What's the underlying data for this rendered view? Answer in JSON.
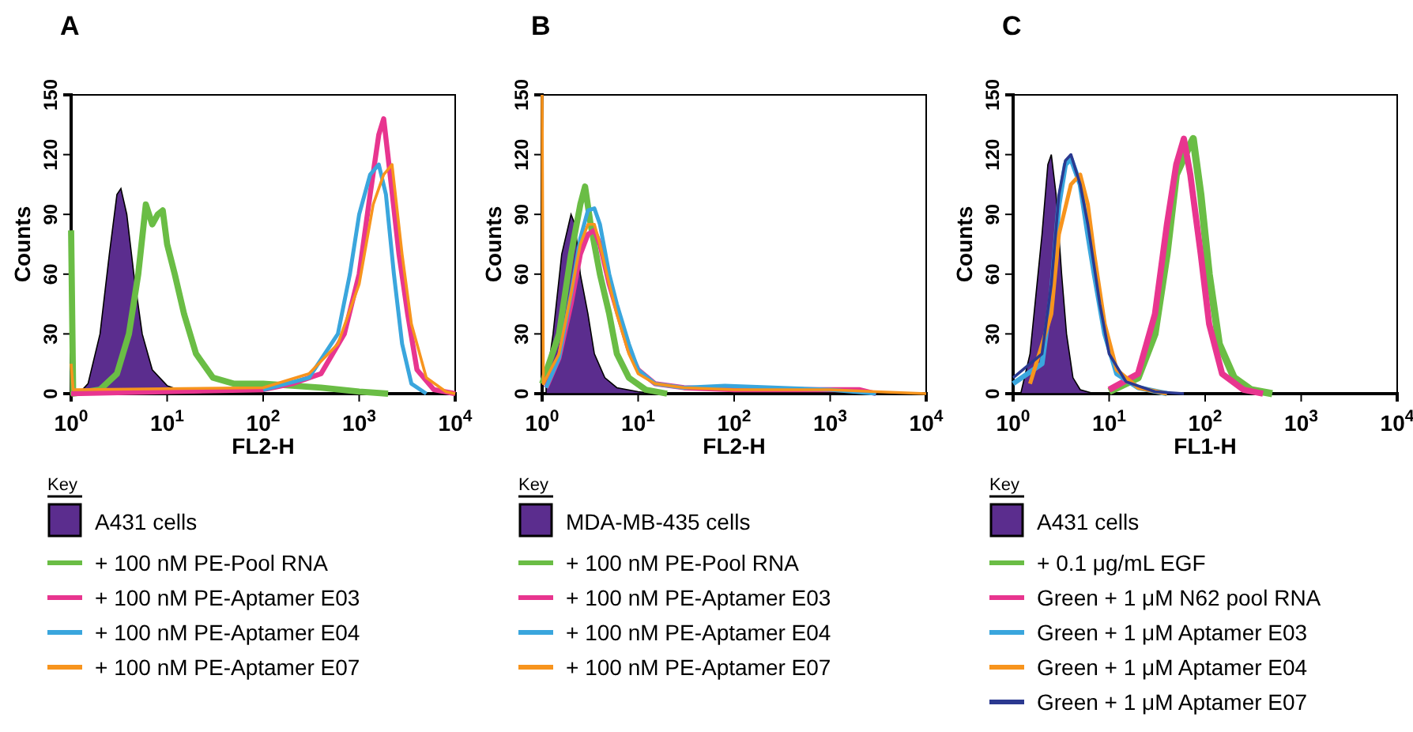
{
  "chart_data": [
    {
      "type": "line",
      "title": "A",
      "xlabel": "FL2-H",
      "ylabel": "Counts",
      "log": "x",
      "xlim": [
        1,
        10000
      ],
      "ylim": [
        0,
        150
      ],
      "xticks": [
        {
          "value": 1,
          "label": "10$^{0}$"
        },
        {
          "value": 10,
          "label": "10$^{1}$"
        },
        {
          "value": 100,
          "label": "10$^{2}$"
        },
        {
          "value": 1000,
          "label": "10$^{3}$"
        },
        {
          "value": 10000,
          "label": "10$^{4}$"
        }
      ],
      "yticks": [
        0,
        30,
        60,
        90,
        120,
        150
      ],
      "legend": "bottom",
      "legend_title": "Key",
      "series": [
        {
          "name": "A431 cells",
          "type": "area",
          "color": "#5b2d8e",
          "x": [
            1.2,
            1.5,
            2,
            2.5,
            3,
            3.3,
            3.8,
            4.5,
            5.5,
            7,
            10,
            15,
            20
          ],
          "values": [
            0,
            5,
            30,
            70,
            100,
            103,
            90,
            60,
            30,
            12,
            4,
            1,
            0
          ]
        },
        {
          "name": "+ 100 nM PE-Pool RNA",
          "color": "#6abd45",
          "x": [
            1,
            1.05,
            2,
            3,
            4,
            5,
            6,
            7,
            8,
            9,
            10,
            12,
            15,
            20,
            30,
            50,
            100,
            200,
            400,
            1000,
            2000
          ],
          "values": [
            82,
            0,
            2,
            10,
            30,
            60,
            95,
            85,
            90,
            92,
            75,
            60,
            40,
            20,
            8,
            5,
            5,
            4,
            3,
            1,
            0
          ]
        },
        {
          "name": "+ 100 nM PE-Aptamer E03",
          "color": "#e8358f",
          "x": [
            1,
            100,
            200,
            400,
            700,
            1000,
            1300,
            1600,
            1800,
            2100,
            2600,
            3200,
            4000,
            6000,
            10000
          ],
          "values": [
            0,
            2,
            5,
            10,
            30,
            60,
            100,
            130,
            138,
            110,
            70,
            40,
            12,
            2,
            0
          ]
        },
        {
          "name": "+ 100 nM PE-Aptamer E04",
          "color": "#3aa6dd",
          "x": [
            100,
            300,
            600,
            800,
            1000,
            1300,
            1600,
            1900,
            2300,
            2800,
            3500,
            5000
          ],
          "values": [
            2,
            8,
            30,
            60,
            90,
            110,
            115,
            100,
            60,
            25,
            5,
            0
          ]
        },
        {
          "name": "+ 100 nM PE-Aptamer E07",
          "color": "#f7941d",
          "x": [
            1,
            1.05,
            100,
            300,
            600,
            1000,
            1400,
            1800,
            2200,
            2800,
            3500,
            5000,
            8000,
            10000
          ],
          "values": [
            15,
            2,
            3,
            10,
            25,
            55,
            95,
            110,
            115,
            70,
            35,
            8,
            1,
            0
          ]
        }
      ]
    },
    {
      "type": "line",
      "title": "B",
      "xlabel": "FL2-H",
      "ylabel": "Counts",
      "log": "x",
      "xlim": [
        1,
        10000
      ],
      "ylim": [
        0,
        150
      ],
      "xticks": [
        {
          "value": 1,
          "label": "10$^{0}$"
        },
        {
          "value": 10,
          "label": "10$^{1}$"
        },
        {
          "value": 100,
          "label": "10$^{2}$"
        },
        {
          "value": 1000,
          "label": "10$^{3}$"
        },
        {
          "value": 10000,
          "label": "10$^{4}$"
        }
      ],
      "yticks": [
        0,
        30,
        60,
        90,
        120,
        150
      ],
      "legend": "bottom",
      "legend_title": "Key",
      "series": [
        {
          "name": "MDA-MB-435 cells",
          "type": "area",
          "color": "#5b2d8e",
          "x": [
            1.1,
            1.3,
            1.6,
            2,
            2.2,
            2.5,
            3,
            3.5,
            4.5,
            6,
            10,
            15
          ],
          "values": [
            5,
            30,
            70,
            90,
            85,
            60,
            40,
            20,
            8,
            3,
            1,
            0
          ]
        },
        {
          "name": "+ 100 nM PE-Pool RNA",
          "color": "#6abd45",
          "x": [
            1,
            1.5,
            2,
            2.5,
            2.8,
            3.2,
            4,
            5,
            6,
            8,
            12,
            20
          ],
          "values": [
            5,
            30,
            70,
            95,
            104,
            85,
            60,
            40,
            20,
            8,
            2,
            0
          ]
        },
        {
          "name": "+ 100 nM PE-Aptamer E03",
          "color": "#e8358f",
          "x": [
            1.1,
            1.5,
            2,
            2.5,
            3,
            3.5,
            4,
            5,
            6,
            8,
            10,
            15,
            30,
            100,
            1000,
            2000,
            3000
          ],
          "values": [
            3,
            18,
            45,
            70,
            80,
            82,
            75,
            55,
            42,
            22,
            12,
            5,
            3,
            2,
            2,
            2,
            0
          ]
        },
        {
          "name": "+ 100 nM PE-Aptamer E04",
          "color": "#3aa6dd",
          "x": [
            1.1,
            1.5,
            2,
            2.5,
            3,
            3.5,
            4,
            5,
            6,
            8,
            10,
            15,
            30,
            80,
            1000,
            3000
          ],
          "values": [
            3,
            18,
            50,
            78,
            92,
            93,
            85,
            60,
            45,
            25,
            12,
            5,
            3,
            4,
            2,
            0
          ]
        },
        {
          "name": "+ 100 nM PE-Aptamer E07",
          "color": "#f7941d",
          "x": [
            1,
            1.03,
            1.5,
            2,
            2.5,
            3,
            3.5,
            4,
            5,
            6,
            8,
            10,
            15,
            30,
            100,
            1000,
            3000,
            10000
          ],
          "values": [
            150,
            5,
            20,
            50,
            75,
            85,
            85,
            75,
            55,
            40,
            20,
            10,
            5,
            3,
            2,
            2,
            1,
            0
          ]
        }
      ]
    },
    {
      "type": "line",
      "title": "C",
      "xlabel": "FL1-H",
      "ylabel": "Counts",
      "log": "x",
      "xlim": [
        1,
        10000
      ],
      "ylim": [
        0,
        150
      ],
      "xticks": [
        {
          "value": 1,
          "label": "10$^{0}$"
        },
        {
          "value": 10,
          "label": "10$^{1}$"
        },
        {
          "value": 100,
          "label": "10$^{2}$"
        },
        {
          "value": 1000,
          "label": "10$^{3}$"
        },
        {
          "value": 10000,
          "label": "10$^{4}$"
        }
      ],
      "yticks": [
        0,
        30,
        60,
        90,
        120,
        150
      ],
      "legend": "bottom",
      "legend_title": "Key",
      "series": [
        {
          "name": "A431 cells",
          "type": "area",
          "color": "#5b2d8e",
          "x": [
            1.2,
            1.5,
            2,
            2.3,
            2.5,
            2.8,
            3.2,
            3.6,
            4.2,
            5,
            7
          ],
          "values": [
            0,
            20,
            80,
            115,
            120,
            100,
            60,
            30,
            8,
            2,
            0
          ]
        },
        {
          "name": "+ 0.1 μg/mL EGF",
          "color": "#6abd45",
          "x": [
            10,
            20,
            30,
            40,
            50,
            65,
            75,
            90,
            110,
            140,
            200,
            300,
            500
          ],
          "values": [
            1,
            8,
            30,
            70,
            110,
            122,
            128,
            100,
            60,
            25,
            8,
            2,
            0
          ]
        },
        {
          "name": "Green + 1 μM N62 pool RNA",
          "color": "#e8358f",
          "x": [
            10,
            20,
            30,
            40,
            50,
            60,
            70,
            90,
            110,
            150,
            250,
            400
          ],
          "values": [
            2,
            10,
            40,
            85,
            115,
            128,
            110,
            70,
            35,
            10,
            2,
            0
          ]
        },
        {
          "name": "Green + 1 μM Aptamer E03",
          "color": "#3aa6dd",
          "x": [
            1,
            2,
            2.5,
            3,
            3.5,
            4,
            5,
            6,
            7,
            9,
            12,
            20,
            40
          ],
          "values": [
            5,
            15,
            50,
            95,
            115,
            118,
            105,
            80,
            60,
            30,
            10,
            3,
            0
          ]
        },
        {
          "name": "Green + 1 μM Aptamer E04",
          "color": "#f7941d",
          "x": [
            1.5,
            2.5,
            3,
            4,
            5,
            6,
            7,
            9,
            12,
            20,
            40
          ],
          "values": [
            5,
            40,
            80,
            105,
            110,
            95,
            70,
            35,
            12,
            3,
            0
          ]
        },
        {
          "name": "Green + 1 μM Aptamer E07",
          "color": "#2b3990",
          "x": [
            1,
            2,
            2.5,
            3,
            3.5,
            4,
            5,
            6,
            8,
            10,
            15,
            30,
            60
          ],
          "values": [
            8,
            20,
            55,
            100,
            117,
            120,
            105,
            85,
            45,
            20,
            6,
            1,
            0
          ]
        }
      ]
    }
  ]
}
